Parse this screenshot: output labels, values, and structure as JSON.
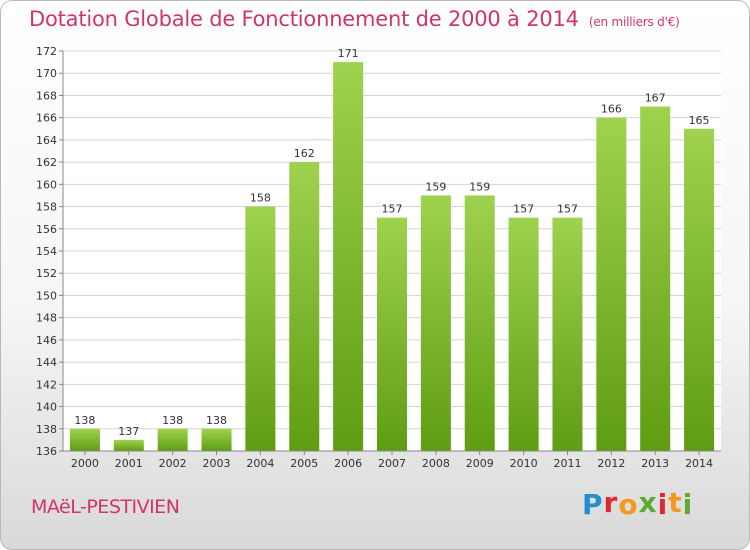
{
  "header": {
    "title": "Dotation Globale de Fonctionnement de 2000 à 2014",
    "unit": "(en milliers d'€)"
  },
  "footer": {
    "commune": "MAëL-PESTIVIEN",
    "logo": "Proxiti"
  },
  "colors": {
    "accent": "#d2336a",
    "bar_top": "#9fd24e",
    "bar_bottom": "#5e9d12",
    "logo_letters": [
      "#1f8fd1",
      "#e2262d",
      "#f29a1f",
      "#5aab2f",
      "#e2262d",
      "#f29a1f",
      "#5aab2f"
    ]
  },
  "chart_data": {
    "type": "bar",
    "categories": [
      "2000",
      "2001",
      "2002",
      "2003",
      "2004",
      "2005",
      "2006",
      "2007",
      "2008",
      "2009",
      "2010",
      "2011",
      "2012",
      "2013",
      "2014"
    ],
    "values": [
      138,
      137,
      138,
      138,
      158,
      162,
      171,
      157,
      159,
      159,
      157,
      157,
      166,
      167,
      165
    ],
    "ylim": [
      136,
      172
    ],
    "yticks": [
      136,
      138,
      140,
      142,
      144,
      146,
      148,
      150,
      152,
      154,
      156,
      158,
      160,
      162,
      164,
      166,
      168,
      170,
      172
    ],
    "grid": true,
    "data_labels": true
  }
}
